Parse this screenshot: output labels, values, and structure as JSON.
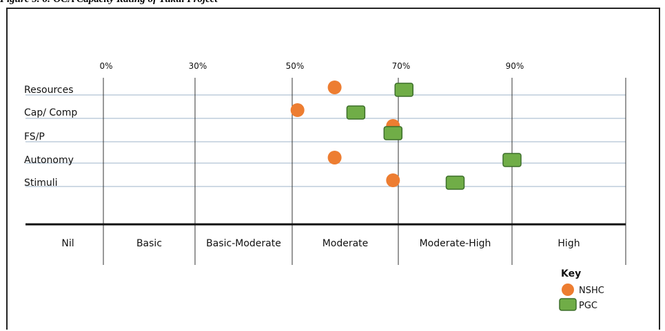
{
  "figure": {
    "caption": "Figure 5. 6: OCA Capacity Rating of Tukul Project"
  },
  "chart_data": {
    "type": "scatter",
    "title": "",
    "percent_ticks": [
      "0%",
      "30%",
      "50%",
      "70%",
      "90%"
    ],
    "bands": [
      "Nil",
      "Basic",
      "Basic-Moderate",
      "Moderate",
      "Moderate-High",
      "High"
    ],
    "categories": [
      "Resources",
      "Cap/ Comp",
      "FS/P",
      "Autonomy",
      "Stimuli"
    ],
    "series": [
      {
        "name": "NSHC",
        "marker": "circle",
        "color": "#ED7D31",
        "values": [
          0.58,
          0.51,
          0.69,
          0.58,
          0.69
        ]
      },
      {
        "name": "PGC",
        "marker": "rounded-square",
        "color": "#70AD47",
        "values": [
          0.71,
          0.62,
          0.69,
          0.9,
          0.8
        ]
      }
    ],
    "legend": {
      "title": "Key",
      "position": "bottom-right"
    },
    "grid": true,
    "grid_color": "#9DB3C8"
  }
}
